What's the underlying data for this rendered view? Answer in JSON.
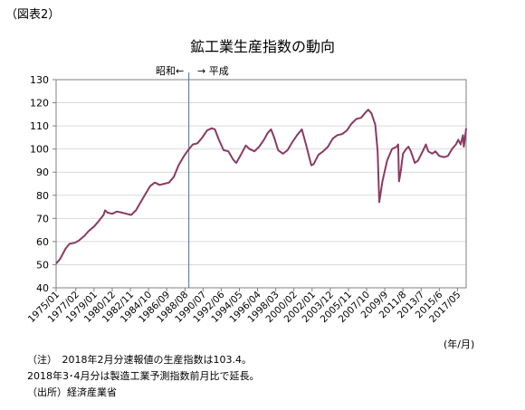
{
  "figure_label": "（図表2）",
  "era_left": "昭和←",
  "era_right": "→ 平成",
  "unit": "(年/月)",
  "notes": [
    "（注）　2018年2月分速報値の生産指数は103.4。",
    "2018年3･4月分は製造工業予測指数前月比で延長。",
    "（出所）経済産業省"
  ],
  "colors": {
    "series": "#8B3A62",
    "divider": "#4A6FA5",
    "grid": "#d9d9d9",
    "axis": "#808080"
  },
  "chart_data": {
    "type": "line",
    "title": "鉱工業生産指数の動向",
    "xlabel": "(年/月)",
    "ylabel": "",
    "ylim": [
      40,
      130
    ],
    "yticks": [
      40,
      50,
      60,
      70,
      80,
      90,
      100,
      110,
      120,
      130
    ],
    "grid": true,
    "x_start": "1975/01",
    "x_end": "2018/04",
    "xtick_labels": [
      "1975/01",
      "1977/02",
      "1979/01",
      "1980/12",
      "1982/11",
      "1984/10",
      "1986/09",
      "1988/08",
      "1990/07",
      "1992/06",
      "1994/05",
      "1996/04",
      "1998/03",
      "2000/02",
      "2002/01",
      "2003/12",
      "2005/11",
      "2007/10",
      "2009/9",
      "2011/8",
      "2013/7",
      "2015/6",
      "2017/05"
    ],
    "divider_x": "1989/01",
    "series": [
      {
        "name": "",
        "points": [
          [
            "1975/01",
            50.5
          ],
          [
            "1975/06",
            52.5
          ],
          [
            "1976/01",
            57
          ],
          [
            "1976/06",
            59
          ],
          [
            "1977/01",
            59.5
          ],
          [
            "1977/06",
            60.5
          ],
          [
            "1978/01",
            62.5
          ],
          [
            "1978/06",
            64.5
          ],
          [
            "1979/01",
            66.5
          ],
          [
            "1979/06",
            68.5
          ],
          [
            "1980/01",
            71.5
          ],
          [
            "1980/03",
            73.5
          ],
          [
            "1980/06",
            72.5
          ],
          [
            "1980/12",
            72
          ],
          [
            "1981/06",
            73
          ],
          [
            "1981/12",
            72.5
          ],
          [
            "1982/06",
            72
          ],
          [
            "1982/12",
            71.5
          ],
          [
            "1983/06",
            73.5
          ],
          [
            "1983/12",
            77
          ],
          [
            "1984/06",
            80.5
          ],
          [
            "1984/12",
            84
          ],
          [
            "1985/06",
            85.5
          ],
          [
            "1985/12",
            84.5
          ],
          [
            "1986/06",
            85
          ],
          [
            "1986/12",
            85.5
          ],
          [
            "1987/06",
            88
          ],
          [
            "1987/12",
            93
          ],
          [
            "1988/06",
            96.5
          ],
          [
            "1988/12",
            99.5
          ],
          [
            "1989/06",
            102
          ],
          [
            "1989/12",
            102.5
          ],
          [
            "1990/06",
            105
          ],
          [
            "1990/12",
            108
          ],
          [
            "1991/06",
            109
          ],
          [
            "1991/10",
            108.5
          ],
          [
            "1992/03",
            104
          ],
          [
            "1992/09",
            99.5
          ],
          [
            "1993/03",
            99
          ],
          [
            "1993/09",
            95.5
          ],
          [
            "1994/01",
            94
          ],
          [
            "1994/06",
            97
          ],
          [
            "1995/01",
            101.5
          ],
          [
            "1995/06",
            100
          ],
          [
            "1995/12",
            99
          ],
          [
            "1996/06",
            101
          ],
          [
            "1996/12",
            104
          ],
          [
            "1997/05",
            107
          ],
          [
            "1997/09",
            108.5
          ],
          [
            "1998/01",
            105
          ],
          [
            "1998/06",
            99.5
          ],
          [
            "1998/12",
            98
          ],
          [
            "1999/06",
            99.5
          ],
          [
            "1999/12",
            103
          ],
          [
            "2000/06",
            106
          ],
          [
            "2000/12",
            108.5
          ],
          [
            "2001/06",
            101
          ],
          [
            "2001/12",
            93
          ],
          [
            "2002/03",
            93.5
          ],
          [
            "2002/09",
            97.5
          ],
          [
            "2003/03",
            99
          ],
          [
            "2003/09",
            101
          ],
          [
            "2004/03",
            104.5
          ],
          [
            "2004/09",
            106
          ],
          [
            "2005/03",
            106.5
          ],
          [
            "2005/09",
            108
          ],
          [
            "2006/03",
            111
          ],
          [
            "2006/09",
            113
          ],
          [
            "2007/03",
            113.5
          ],
          [
            "2007/09",
            116
          ],
          [
            "2007/12",
            117
          ],
          [
            "2008/04",
            115.5
          ],
          [
            "2008/09",
            110.5
          ],
          [
            "2008/12",
            99
          ],
          [
            "2009/02",
            77
          ],
          [
            "2009/06",
            86
          ],
          [
            "2009/12",
            95
          ],
          [
            "2010/06",
            100
          ],
          [
            "2010/12",
            101
          ],
          [
            "2011/02",
            102
          ],
          [
            "2011/03",
            86
          ],
          [
            "2011/05",
            90
          ],
          [
            "2011/08",
            98
          ],
          [
            "2011/12",
            100
          ],
          [
            "2012/03",
            101
          ],
          [
            "2012/06",
            99
          ],
          [
            "2012/11",
            94
          ],
          [
            "2013/03",
            95
          ],
          [
            "2013/09",
            99
          ],
          [
            "2014/01",
            102
          ],
          [
            "2014/04",
            99
          ],
          [
            "2014/09",
            98
          ],
          [
            "2015/01",
            99
          ],
          [
            "2015/06",
            97
          ],
          [
            "2015/12",
            96.5
          ],
          [
            "2016/05",
            97
          ],
          [
            "2016/10",
            100
          ],
          [
            "2017/03",
            102
          ],
          [
            "2017/06",
            104
          ],
          [
            "2017/09",
            102
          ],
          [
            "2017/12",
            106
          ],
          [
            "2018/01",
            101
          ],
          [
            "2018/02",
            103.4
          ],
          [
            "2018/04",
            109
          ]
        ]
      }
    ]
  }
}
